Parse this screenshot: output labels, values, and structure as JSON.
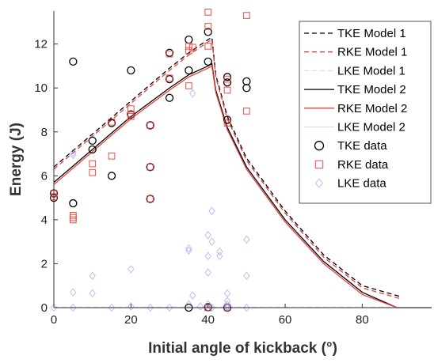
{
  "chart_data": {
    "type": "scatter",
    "title": "",
    "xlabel": "Initial angle of kickback (°)",
    "ylabel": "Energy (J)",
    "xlim": [
      0,
      98
    ],
    "ylim": [
      0,
      13.5
    ],
    "xticks": [
      0,
      20,
      40,
      60,
      80
    ],
    "yticks": [
      0,
      2,
      4,
      6,
      8,
      10,
      12
    ],
    "grid": false,
    "legend_position": "top-right",
    "colors": {
      "tke": "#000000",
      "rke": "#e8413c",
      "lke": "#b8bff0",
      "lke_marker": "#8c96e6"
    },
    "lines": [
      {
        "name": "TKE Model 1",
        "color": "#000000",
        "dash": "dashed",
        "x": [
          0,
          10,
          20,
          30,
          35,
          40,
          41,
          42,
          45,
          50,
          60,
          70,
          80,
          90
        ],
        "y": [
          6.4,
          7.9,
          9.4,
          10.9,
          11.6,
          12.2,
          12.3,
          10.6,
          8.7,
          6.8,
          4.4,
          2.4,
          1.0,
          0.5
        ]
      },
      {
        "name": "RKE Model 1",
        "color": "#e8413c",
        "dash": "dashed",
        "x": [
          0,
          10,
          20,
          30,
          35,
          40,
          41,
          42,
          45,
          50,
          60,
          70,
          80,
          90
        ],
        "y": [
          6.3,
          7.8,
          9.3,
          10.8,
          11.5,
          12.1,
          12.2,
          10.5,
          8.6,
          6.7,
          4.3,
          2.3,
          0.9,
          0.4
        ]
      },
      {
        "name": "LKE Model 1",
        "color": "#dcdff8",
        "dash": "dashed",
        "x": [
          0,
          90
        ],
        "y": [
          0.02,
          0.02
        ]
      },
      {
        "name": "TKE Model 2",
        "color": "#000000",
        "dash": "solid",
        "x": [
          0,
          10,
          20,
          30,
          35,
          40,
          41,
          42,
          45,
          50,
          60,
          70,
          80,
          89,
          98
        ],
        "y": [
          5.7,
          7.2,
          8.7,
          10.0,
          10.6,
          11.0,
          11.1,
          9.9,
          8.2,
          6.4,
          4.0,
          2.1,
          0.7,
          0.0,
          0.0
        ]
      },
      {
        "name": "RKE Model 2",
        "color": "#e8413c",
        "dash": "solid",
        "x": [
          0,
          10,
          20,
          30,
          35,
          40,
          41,
          42,
          45,
          50,
          60,
          70,
          80,
          89
        ],
        "y": [
          5.6,
          7.1,
          8.6,
          9.9,
          10.5,
          10.9,
          11.0,
          9.8,
          8.1,
          6.3,
          3.9,
          2.0,
          0.6,
          0.0
        ]
      },
      {
        "name": "LKE Model 2",
        "color": "#d8dcf6",
        "dash": "solid",
        "x": [
          0,
          98
        ],
        "y": [
          0.0,
          0.0
        ]
      }
    ],
    "scatter": [
      {
        "name": "TKE data",
        "marker": "circle",
        "color": "#000000",
        "x": [
          0,
          0,
          5,
          5,
          10,
          10,
          15,
          15,
          20,
          20,
          25,
          25,
          25,
          30,
          30,
          30,
          35,
          35,
          35,
          40,
          40,
          40,
          45,
          45,
          45,
          45,
          50,
          50
        ],
        "y": [
          5.2,
          5.0,
          11.2,
          4.75,
          7.6,
          7.2,
          8.4,
          6.0,
          10.8,
          8.8,
          8.3,
          6.4,
          4.95,
          11.6,
          10.4,
          9.55,
          12.2,
          10.8,
          0.0,
          12.55,
          11.2,
          0.02,
          10.5,
          10.25,
          8.55,
          0.0,
          10.3,
          10.0
        ]
      },
      {
        "name": "RKE data",
        "marker": "square",
        "color": "#e8413c",
        "x": [
          0,
          0,
          5,
          5,
          5,
          10,
          10,
          15,
          15,
          20,
          20,
          20,
          25,
          25,
          25,
          30,
          30,
          35,
          35,
          35,
          36,
          40,
          40,
          40,
          40,
          45,
          45,
          45,
          45,
          50,
          50
        ],
        "y": [
          5.2,
          5.05,
          4.2,
          4.1,
          4.0,
          6.55,
          6.15,
          8.45,
          6.9,
          9.05,
          8.8,
          8.7,
          8.3,
          6.4,
          4.95,
          11.55,
          10.45,
          11.9,
          11.7,
          10.1,
          11.85,
          13.45,
          12.8,
          11.9,
          0.0,
          10.4,
          9.9,
          8.4,
          0.0,
          13.3,
          8.95
        ]
      },
      {
        "name": "LKE data",
        "marker": "diamond",
        "color": "#8c96e6",
        "x": [
          0,
          5,
          5,
          5,
          5,
          10,
          10,
          15,
          20,
          20,
          25,
          30,
          35,
          35,
          35,
          36,
          38,
          40,
          40,
          40,
          40,
          40,
          41,
          41,
          41,
          43,
          43,
          45,
          45,
          45,
          45,
          45,
          50,
          50,
          50,
          36
        ],
        "y": [
          0.0,
          0.7,
          0.0,
          6.95,
          7.05,
          1.45,
          0.65,
          0.0,
          1.75,
          0.05,
          0.0,
          0.0,
          2.7,
          2.6,
          0.15,
          9.75,
          0.05,
          3.3,
          2.35,
          1.6,
          0.0,
          0.15,
          3.0,
          4.4,
          0.0,
          2.55,
          2.35,
          0.65,
          0.15,
          0.0,
          0.3,
          0.05,
          3.1,
          1.45,
          0.0,
          0.55
        ]
      }
    ]
  }
}
